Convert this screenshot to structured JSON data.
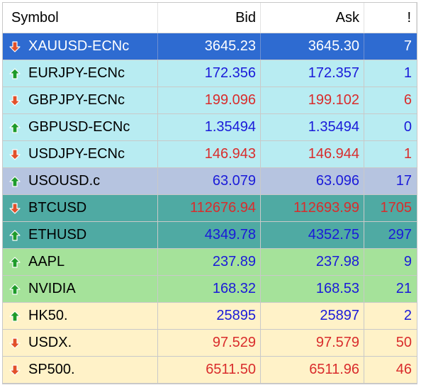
{
  "header": {
    "symbol": "Symbol",
    "bid": "Bid",
    "ask": "Ask",
    "spread": "!"
  },
  "colors": {
    "up_text": "#1a1ad9",
    "down_text": "#d92c2c",
    "selected_bg": "#2e6bd1",
    "forex_bg": "#b8ecf2",
    "oil_bg": "#b6c4e0",
    "crypto_bg": "#4faaa3",
    "stock_bg": "#a5e29a",
    "index_bg": "#fff2c8",
    "arrow_up": "#1e9b2a",
    "arrow_down": "#e2502a"
  },
  "rows": [
    {
      "symbol": "XAUUSD-ECNc",
      "bid": "3645.23",
      "ask": "3645.30",
      "spread": "7",
      "direction": "down",
      "group": "selected"
    },
    {
      "symbol": "EURJPY-ECNc",
      "bid": "172.356",
      "ask": "172.357",
      "spread": "1",
      "direction": "up",
      "group": "forex"
    },
    {
      "symbol": "GBPJPY-ECNc",
      "bid": "199.096",
      "ask": "199.102",
      "spread": "6",
      "direction": "down",
      "group": "forex"
    },
    {
      "symbol": "GBPUSD-ECNc",
      "bid": "1.35494",
      "ask": "1.35494",
      "spread": "0",
      "direction": "up",
      "group": "forex"
    },
    {
      "symbol": "USDJPY-ECNc",
      "bid": "146.943",
      "ask": "146.944",
      "spread": "1",
      "direction": "down",
      "group": "forex"
    },
    {
      "symbol": "USOUSD.c",
      "bid": "63.079",
      "ask": "63.096",
      "spread": "17",
      "direction": "up",
      "group": "oil"
    },
    {
      "symbol": "BTCUSD",
      "bid": "112676.94",
      "ask": "112693.99",
      "spread": "1705",
      "direction": "down",
      "group": "crypto"
    },
    {
      "symbol": "ETHUSD",
      "bid": "4349.78",
      "ask": "4352.75",
      "spread": "297",
      "direction": "up",
      "group": "crypto"
    },
    {
      "symbol": "AAPL",
      "bid": "237.89",
      "ask": "237.98",
      "spread": "9",
      "direction": "up",
      "group": "stock"
    },
    {
      "symbol": "NVIDIA",
      "bid": "168.32",
      "ask": "168.53",
      "spread": "21",
      "direction": "up",
      "group": "stock"
    },
    {
      "symbol": "HK50.",
      "bid": "25895",
      "ask": "25897",
      "spread": "2",
      "direction": "up",
      "group": "index"
    },
    {
      "symbol": "USDX.",
      "bid": "97.529",
      "ask": "97.579",
      "spread": "50",
      "direction": "down",
      "group": "index"
    },
    {
      "symbol": "SP500.",
      "bid": "6511.50",
      "ask": "6511.96",
      "spread": "46",
      "direction": "down",
      "group": "index"
    }
  ]
}
